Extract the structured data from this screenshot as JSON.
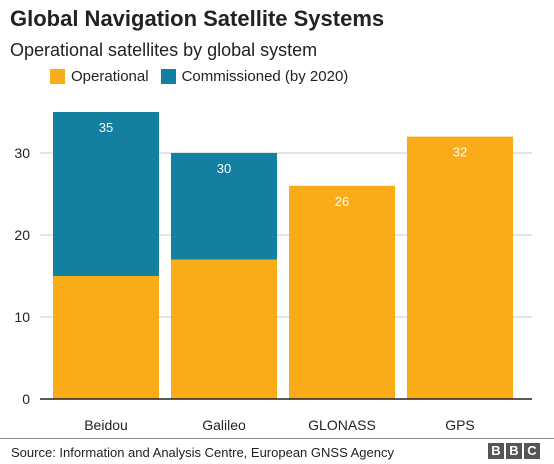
{
  "title": "Global Navigation Satellite Systems",
  "subtitle": "Operational satellites by global system",
  "source": "Source: Information and Analysis Centre, European GNSS Agency",
  "logo_letters": [
    "B",
    "B",
    "C"
  ],
  "colors": {
    "operational": "#faab18",
    "commissioned": "#1380a1",
    "grid": "#cbcbcb",
    "axis": "#222222"
  },
  "chart_data": {
    "type": "bar",
    "stacked": true,
    "categories": [
      "Beidou",
      "Galileo",
      "GLONASS",
      "GPS"
    ],
    "series": [
      {
        "name": "Operational",
        "values": [
          15,
          17,
          26,
          32
        ]
      },
      {
        "name": "Commissioned (by 2020)",
        "values": [
          20,
          13,
          0,
          0
        ]
      }
    ],
    "totals": [
      35,
      30,
      26,
      32
    ],
    "ylim": [
      0,
      40
    ],
    "yticks": [
      0,
      10,
      20,
      30
    ],
    "grid": true,
    "legend_position": "top-left"
  }
}
